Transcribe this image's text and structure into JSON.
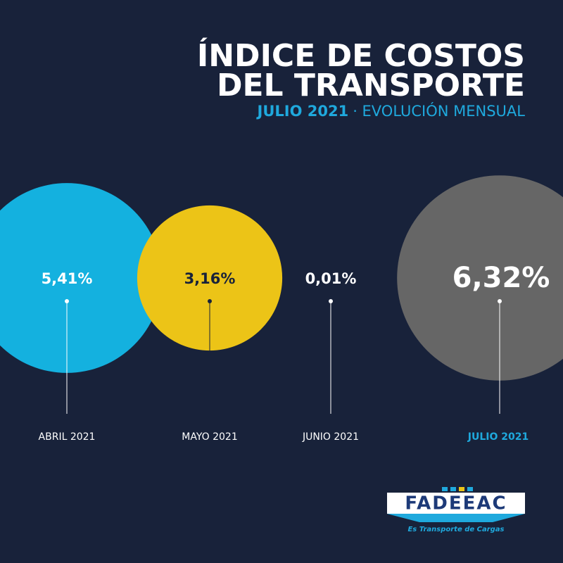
{
  "title": [
    "ÍNDICE DE COSTOS",
    "DEL TRANSPORTE"
  ],
  "subtitle_highlight": "JULIO 2021",
  "subtitle": "· EVOLUCIÓN MENSUAL",
  "chart_data": {
    "type": "bubble",
    "categories": [
      "ABRIL 2021",
      "MAYO 2021",
      "JUNIO 2021",
      "JULIO 2021"
    ],
    "values": [
      5.41,
      3.16,
      0.01,
      6.32
    ],
    "value_labels": [
      "5,41%",
      "3,16%",
      "0,01%",
      "6,32%"
    ],
    "colors": [
      "#14b1df",
      "#ecc417",
      "#18233b",
      "#666666"
    ],
    "highlight_color": "#1fa9dd"
  },
  "logo": {
    "name": "FADEEAC",
    "tagline": "Es Transporte de Cargas"
  }
}
